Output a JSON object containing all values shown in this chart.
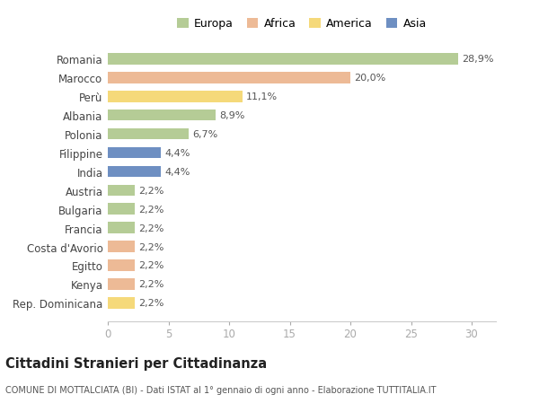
{
  "categories": [
    "Romania",
    "Marocco",
    "Perù",
    "Albania",
    "Polonia",
    "Filippine",
    "India",
    "Austria",
    "Bulgaria",
    "Francia",
    "Costa d'Avorio",
    "Egitto",
    "Kenya",
    "Rep. Dominicana"
  ],
  "values": [
    28.9,
    20.0,
    11.1,
    8.9,
    6.7,
    4.4,
    4.4,
    2.2,
    2.2,
    2.2,
    2.2,
    2.2,
    2.2,
    2.2
  ],
  "labels": [
    "28,9%",
    "20,0%",
    "11,1%",
    "8,9%",
    "6,7%",
    "4,4%",
    "4,4%",
    "2,2%",
    "2,2%",
    "2,2%",
    "2,2%",
    "2,2%",
    "2,2%",
    "2,2%"
  ],
  "colors": [
    "#b5cc96",
    "#edba96",
    "#f5d97a",
    "#b5cc96",
    "#b5cc96",
    "#6e8fc2",
    "#6e8fc2",
    "#b5cc96",
    "#b5cc96",
    "#b5cc96",
    "#edba96",
    "#edba96",
    "#edba96",
    "#f5d97a"
  ],
  "legend_labels": [
    "Europa",
    "Africa",
    "America",
    "Asia"
  ],
  "legend_colors": [
    "#b5cc96",
    "#edba96",
    "#f5d97a",
    "#6e8fc2"
  ],
  "title": "Cittadini Stranieri per Cittadinanza",
  "subtitle": "COMUNE DI MOTTALCIATA (BI) - Dati ISTAT al 1° gennaio di ogni anno - Elaborazione TUTTITALIA.IT",
  "xlim": [
    0,
    32
  ],
  "xticks": [
    0,
    5,
    10,
    15,
    20,
    25,
    30
  ],
  "background_color": "#ffffff",
  "plot_bg_color": "#ffffff",
  "bar_height": 0.6,
  "label_fontsize": 8.0,
  "ytick_fontsize": 8.5,
  "xtick_fontsize": 8.5,
  "title_fontsize": 10.5,
  "subtitle_fontsize": 7.0,
  "legend_fontsize": 9.0
}
